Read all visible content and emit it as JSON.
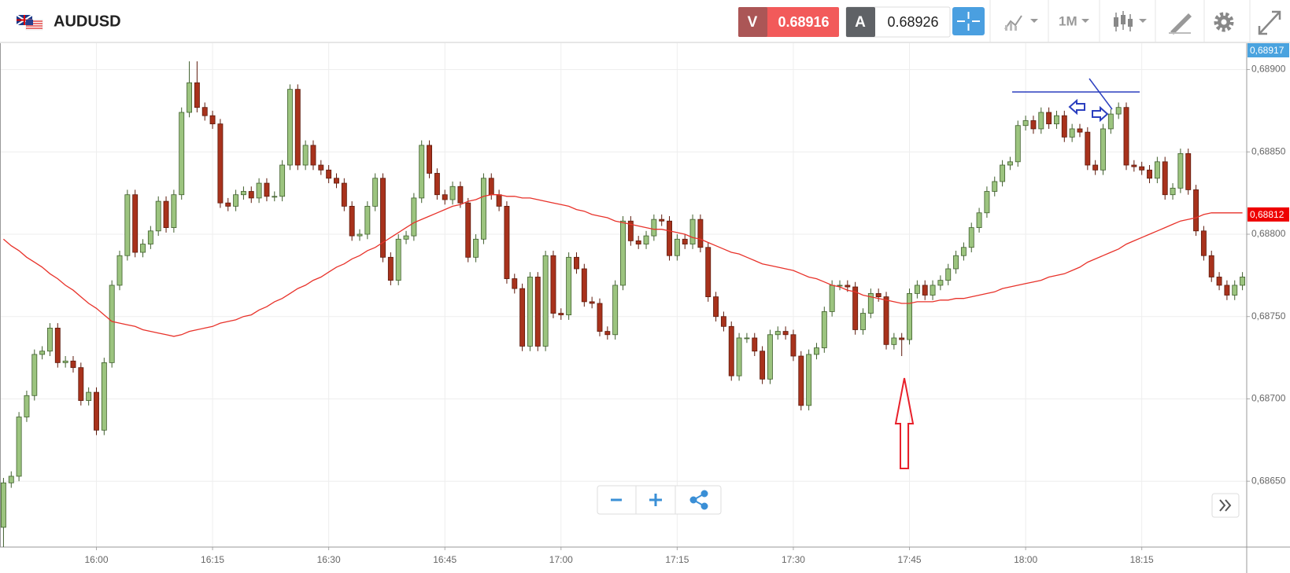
{
  "header": {
    "symbol": "AUDUSD",
    "sell_label": "V",
    "sell_price": "0.68916",
    "buy_label": "A",
    "buy_price": "0.68926",
    "timeframe": "1M"
  },
  "chart_data": {
    "type": "candlestick",
    "categories": [
      null,
      null,
      null,
      null,
      null,
      null,
      null,
      null,
      null,
      null,
      null,
      null,
      "16:00",
      null,
      null,
      null,
      null,
      null,
      null,
      null,
      null,
      null,
      null,
      null,
      null,
      null,
      null,
      "16:15",
      null,
      null,
      null,
      null,
      null,
      null,
      null,
      null,
      null,
      null,
      null,
      null,
      null,
      null,
      "16:30",
      null,
      null,
      null,
      null,
      null,
      null,
      null,
      null,
      null,
      null,
      null,
      null,
      null,
      null,
      "16:45",
      null,
      null,
      null,
      null,
      null,
      null,
      null,
      null,
      null,
      null,
      null,
      null,
      null,
      null,
      "17:00",
      null,
      null,
      null,
      null,
      null,
      null,
      null,
      null,
      null,
      null,
      null,
      null,
      null,
      null,
      "17:15",
      null,
      null,
      null,
      null,
      null,
      null,
      null,
      null,
      null,
      null,
      null,
      null,
      null,
      null,
      "17:30",
      null,
      null,
      null,
      null,
      null,
      null,
      null,
      null,
      null,
      null,
      null,
      null,
      null,
      null,
      "17:45",
      null,
      null,
      null,
      null,
      null,
      null,
      null,
      null,
      null,
      null,
      null,
      null,
      null,
      null,
      "18:00",
      null,
      null,
      null,
      null,
      null,
      null,
      null,
      null,
      null,
      null,
      null,
      null,
      null,
      null,
      "18:15",
      null,
      null,
      null,
      null,
      null,
      null,
      null,
      null,
      null,
      null,
      null,
      null,
      null
    ],
    "open": [
      0.68622,
      0.68649,
      0.68653,
      0.68689,
      0.68702,
      0.68727,
      0.68729,
      0.68743,
      0.68722,
      0.68723,
      0.68719,
      0.68699,
      0.68704,
      0.68681,
      0.68722,
      0.68769,
      0.68787,
      0.68824,
      0.68789,
      0.68794,
      0.68802,
      0.6882,
      0.68804,
      0.68824,
      0.68874,
      0.68892,
      0.68877,
      0.68872,
      0.68867,
      0.68819,
      0.68817,
      0.68824,
      0.68826,
      0.68822,
      0.68831,
      0.68823,
      0.68823,
      0.68842,
      0.68888,
      0.68842,
      0.68854,
      0.68842,
      0.68839,
      0.68834,
      0.68831,
      0.68817,
      0.68799,
      0.688,
      0.68817,
      0.68834,
      0.68786,
      0.68772,
      0.68797,
      0.68799,
      0.68822,
      0.68854,
      0.68837,
      0.68824,
      0.68821,
      0.68829,
      0.68819,
      0.68786,
      0.68797,
      0.68834,
      0.68824,
      0.68817,
      0.68773,
      0.68767,
      0.68732,
      0.68774,
      0.68732,
      0.68787,
      0.68752,
      0.68751,
      0.68786,
      0.68779,
      0.68759,
      0.68758,
      0.68741,
      0.68739,
      0.68769,
      0.68808,
      0.68796,
      0.68794,
      0.68799,
      0.68809,
      0.68808,
      0.68787,
      0.68797,
      0.68794,
      0.68809,
      0.68792,
      0.68762,
      0.6875,
      0.68744,
      0.68714,
      0.68737,
      0.68737,
      0.68729,
      0.68712,
      0.68739,
      0.68741,
      0.68739,
      0.68726,
      0.68696,
      0.68727,
      0.68731,
      0.68753,
      0.68769,
      0.68769,
      0.68768,
      0.68742,
      0.68752,
      0.68764,
      0.68762,
      0.68733,
      0.68737,
      0.68736,
      0.68764,
      0.68769,
      0.68763,
      0.68769,
      0.68772,
      0.68779,
      0.68787,
      0.68792,
      0.68804,
      0.68813,
      0.68826,
      0.68832,
      0.68842,
      0.68844,
      0.68866,
      0.68869,
      0.68864,
      0.68874,
      0.68867,
      0.68872,
      0.68859,
      0.68864,
      0.68862,
      0.68842,
      0.68839,
      0.68864,
      0.68873,
      0.68877,
      0.68842,
      0.68841,
      0.68839,
      0.68834,
      0.68844,
      0.68824,
      0.68828,
      0.68849,
      0.68827,
      0.68802,
      0.68787,
      0.68774,
      0.68769,
      0.68763,
      0.68769
    ],
    "high": [
      0.68652,
      0.68656,
      0.68692,
      0.68705,
      0.6873,
      0.68732,
      0.68746,
      0.68746,
      0.68726,
      0.68726,
      0.68722,
      0.68707,
      0.68707,
      0.68725,
      0.68772,
      0.6879,
      0.68827,
      0.68827,
      0.68797,
      0.68805,
      0.68823,
      0.68823,
      0.68827,
      0.68877,
      0.68905,
      0.68905,
      0.6888,
      0.68875,
      0.6887,
      0.68822,
      0.68827,
      0.68829,
      0.68829,
      0.68834,
      0.68834,
      0.68826,
      0.68845,
      0.68891,
      0.68891,
      0.68857,
      0.68857,
      0.68845,
      0.68842,
      0.68837,
      0.68834,
      0.6882,
      0.68803,
      0.6882,
      0.68837,
      0.68837,
      0.68789,
      0.688,
      0.68802,
      0.68825,
      0.68857,
      0.68857,
      0.6884,
      0.68827,
      0.68832,
      0.68832,
      0.68822,
      0.688,
      0.68837,
      0.68837,
      0.68827,
      0.6882,
      0.68776,
      0.6877,
      0.68777,
      0.68777,
      0.6879,
      0.6879,
      0.68755,
      0.68789,
      0.68789,
      0.68782,
      0.68762,
      0.68761,
      0.68744,
      0.68772,
      0.68811,
      0.68811,
      0.68799,
      0.68802,
      0.68812,
      0.68812,
      0.68811,
      0.688,
      0.688,
      0.68812,
      0.68812,
      0.68795,
      0.68765,
      0.68753,
      0.68747,
      0.6874,
      0.6874,
      0.6874,
      0.68732,
      0.68742,
      0.68744,
      0.68744,
      0.68742,
      0.68729,
      0.6873,
      0.68734,
      0.68756,
      0.68772,
      0.68772,
      0.68772,
      0.68771,
      0.68755,
      0.68767,
      0.68767,
      0.68765,
      0.6874,
      0.6874,
      0.68767,
      0.68772,
      0.68772,
      0.68772,
      0.68775,
      0.68782,
      0.6879,
      0.68795,
      0.68807,
      0.68816,
      0.68829,
      0.68835,
      0.68845,
      0.68847,
      0.68869,
      0.68872,
      0.68872,
      0.68877,
      0.68877,
      0.68875,
      0.68875,
      0.68867,
      0.68867,
      0.68865,
      0.68845,
      0.68867,
      0.68876,
      0.6888,
      0.6888,
      0.68845,
      0.68844,
      0.68842,
      0.68847,
      0.68847,
      0.68831,
      0.68852,
      0.68852,
      0.6883,
      0.68805,
      0.6879,
      0.68777,
      0.68772,
      0.68772,
      0.68777
    ],
    "low": [
      0.6861,
      0.68646,
      0.6865,
      0.68686,
      0.68699,
      0.68724,
      0.68726,
      0.68719,
      0.68719,
      0.68716,
      0.68696,
      0.68696,
      0.68678,
      0.68678,
      0.68719,
      0.68766,
      0.68784,
      0.68786,
      0.68786,
      0.68791,
      0.68799,
      0.68801,
      0.68801,
      0.68821,
      0.68871,
      0.68874,
      0.68869,
      0.68864,
      0.68816,
      0.68814,
      0.68814,
      0.68821,
      0.68819,
      0.68819,
      0.6882,
      0.6882,
      0.6882,
      0.68839,
      0.68839,
      0.68839,
      0.68839,
      0.68836,
      0.68831,
      0.68828,
      0.68814,
      0.68796,
      0.68796,
      0.68797,
      0.68814,
      0.68783,
      0.68769,
      0.68769,
      0.68794,
      0.68796,
      0.68819,
      0.68834,
      0.68821,
      0.68818,
      0.68818,
      0.68816,
      0.68783,
      0.68783,
      0.68794,
      0.68821,
      0.68814,
      0.6877,
      0.68764,
      0.68729,
      0.68729,
      0.68729,
      0.68729,
      0.68749,
      0.68748,
      0.68748,
      0.68776,
      0.68756,
      0.68755,
      0.68738,
      0.68736,
      0.68736,
      0.68766,
      0.68793,
      0.68791,
      0.68791,
      0.68796,
      0.68805,
      0.68784,
      0.68784,
      0.68791,
      0.68791,
      0.68789,
      0.68759,
      0.68747,
      0.68741,
      0.68711,
      0.68711,
      0.68734,
      0.68726,
      0.68709,
      0.68709,
      0.68736,
      0.68736,
      0.68723,
      0.68693,
      0.68693,
      0.68724,
      0.68728,
      0.6875,
      0.68766,
      0.68765,
      0.68739,
      0.68739,
      0.68749,
      0.68759,
      0.6873,
      0.6873,
      0.68726,
      0.68733,
      0.68761,
      0.6876,
      0.6876,
      0.68766,
      0.68769,
      0.68776,
      0.68784,
      0.68789,
      0.68801,
      0.6881,
      0.68823,
      0.68829,
      0.68839,
      0.68841,
      0.68863,
      0.68861,
      0.68861,
      0.68864,
      0.68864,
      0.68856,
      0.68856,
      0.68859,
      0.68839,
      0.68836,
      0.68836,
      0.68861,
      0.6887,
      0.68839,
      0.68838,
      0.68836,
      0.68831,
      0.68831,
      0.68821,
      0.68821,
      0.68825,
      0.68824,
      0.68799,
      0.68784,
      0.68771,
      0.68766,
      0.6876,
      0.6876,
      0.68766
    ],
    "close": [
      0.68649,
      0.68653,
      0.68689,
      0.68702,
      0.68727,
      0.68729,
      0.68743,
      0.68722,
      0.68723,
      0.68719,
      0.68699,
      0.68704,
      0.68681,
      0.68722,
      0.68769,
      0.68787,
      0.68824,
      0.68789,
      0.68794,
      0.68802,
      0.6882,
      0.68804,
      0.68824,
      0.68874,
      0.68892,
      0.68877,
      0.68872,
      0.68867,
      0.68819,
      0.68817,
      0.68824,
      0.68826,
      0.68822,
      0.68831,
      0.68823,
      0.68823,
      0.68842,
      0.68888,
      0.68842,
      0.68854,
      0.68842,
      0.68839,
      0.68834,
      0.68831,
      0.68817,
      0.68799,
      0.688,
      0.68817,
      0.68834,
      0.68786,
      0.68772,
      0.68797,
      0.68799,
      0.68822,
      0.68854,
      0.68837,
      0.68824,
      0.68821,
      0.68829,
      0.68819,
      0.68786,
      0.68797,
      0.68834,
      0.68824,
      0.68817,
      0.68773,
      0.68767,
      0.68732,
      0.68774,
      0.68732,
      0.68787,
      0.68752,
      0.68751,
      0.68786,
      0.68779,
      0.68759,
      0.68758,
      0.68741,
      0.68739,
      0.68769,
      0.68808,
      0.68796,
      0.68794,
      0.68799,
      0.68809,
      0.68808,
      0.68787,
      0.68797,
      0.68794,
      0.68809,
      0.68792,
      0.68762,
      0.6875,
      0.68744,
      0.68714,
      0.68737,
      0.68737,
      0.68729,
      0.68712,
      0.68739,
      0.68741,
      0.68739,
      0.68726,
      0.68696,
      0.68727,
      0.68731,
      0.68753,
      0.68769,
      0.68769,
      0.68768,
      0.68742,
      0.68752,
      0.68764,
      0.68762,
      0.68733,
      0.68737,
      0.68736,
      0.68764,
      0.68769,
      0.68763,
      0.68769,
      0.68772,
      0.68779,
      0.68787,
      0.68792,
      0.68804,
      0.68813,
      0.68826,
      0.68832,
      0.68842,
      0.68844,
      0.68866,
      0.68869,
      0.68864,
      0.68874,
      0.68867,
      0.68872,
      0.68859,
      0.68864,
      0.68862,
      0.68842,
      0.68839,
      0.68864,
      0.68873,
      0.68877,
      0.68842,
      0.68841,
      0.68839,
      0.68834,
      0.68844,
      0.68824,
      0.68828,
      0.68849,
      0.68827,
      0.68802,
      0.68787,
      0.68774,
      0.68769,
      0.68763,
      0.68769,
      0.68774
    ],
    "up_color": "#9cc47f",
    "up_edge": "#3f5f2c",
    "down_color": "#a8321c",
    "down_edge": "#5e1a0c",
    "moving_average": {
      "color": "#e8322a",
      "values": [
        0.68797,
        0.68793,
        0.6879,
        0.68786,
        0.68783,
        0.6878,
        0.68776,
        0.68773,
        0.68769,
        0.68766,
        0.68762,
        0.68758,
        0.68755,
        0.68751,
        0.68747,
        0.68746,
        0.68745,
        0.68744,
        0.68742,
        0.68741,
        0.6874,
        0.68739,
        0.68738,
        0.68739,
        0.68741,
        0.68742,
        0.68743,
        0.68744,
        0.68746,
        0.68747,
        0.68748,
        0.6875,
        0.68751,
        0.68754,
        0.68756,
        0.68759,
        0.68761,
        0.68764,
        0.68767,
        0.68769,
        0.68772,
        0.68774,
        0.68777,
        0.6878,
        0.68782,
        0.68785,
        0.68787,
        0.6879,
        0.68792,
        0.68795,
        0.68798,
        0.68801,
        0.68804,
        0.68807,
        0.68809,
        0.68811,
        0.68813,
        0.68815,
        0.68817,
        0.68818,
        0.6882,
        0.68821,
        0.68823,
        0.68824,
        0.68824,
        0.68823,
        0.68823,
        0.68822,
        0.68822,
        0.68821,
        0.6882,
        0.68819,
        0.68818,
        0.68817,
        0.68815,
        0.68814,
        0.68812,
        0.68811,
        0.6881,
        0.68808,
        0.68807,
        0.68806,
        0.68805,
        0.68804,
        0.68803,
        0.68803,
        0.68802,
        0.68801,
        0.688,
        0.68798,
        0.68797,
        0.68795,
        0.68793,
        0.68791,
        0.68789,
        0.68788,
        0.68786,
        0.68784,
        0.68782,
        0.68781,
        0.6878,
        0.68779,
        0.68778,
        0.68776,
        0.68774,
        0.68773,
        0.68771,
        0.68769,
        0.68768,
        0.68766,
        0.68765,
        0.68763,
        0.68762,
        0.68761,
        0.6876,
        0.68759,
        0.68758,
        0.68758,
        0.68759,
        0.68759,
        0.68759,
        0.6876,
        0.6876,
        0.68761,
        0.68761,
        0.68762,
        0.68763,
        0.68764,
        0.68765,
        0.68767,
        0.68768,
        0.68769,
        0.6877,
        0.68771,
        0.68772,
        0.68774,
        0.68775,
        0.68776,
        0.68778,
        0.6878,
        0.68783,
        0.68785,
        0.68787,
        0.68789,
        0.68791,
        0.68794,
        0.68796,
        0.68798,
        0.688,
        0.68802,
        0.68804,
        0.68806,
        0.68808,
        0.68809,
        0.6881,
        0.68812,
        0.68813,
        0.68813,
        0.68813,
        0.68813,
        0.68813
      ]
    },
    "ylim": [
      0.6861,
      0.68916
    ],
    "yticks": [
      {
        "value": 0.6865,
        "label": "0,68650"
      },
      {
        "value": 0.687,
        "label": "0,68700"
      },
      {
        "value": 0.6875,
        "label": "0,68750"
      },
      {
        "value": 0.688,
        "label": "0,68800"
      },
      {
        "value": 0.6885,
        "label": "0,68850"
      },
      {
        "value": 0.689,
        "label": "0,68900"
      }
    ],
    "price_tags": [
      {
        "value": 0.68917,
        "label": "0,68917",
        "color": "#4aa3df"
      },
      {
        "value": 0.68812,
        "label": "0,68812",
        "color": "#ee0000"
      }
    ],
    "grid": true
  }
}
